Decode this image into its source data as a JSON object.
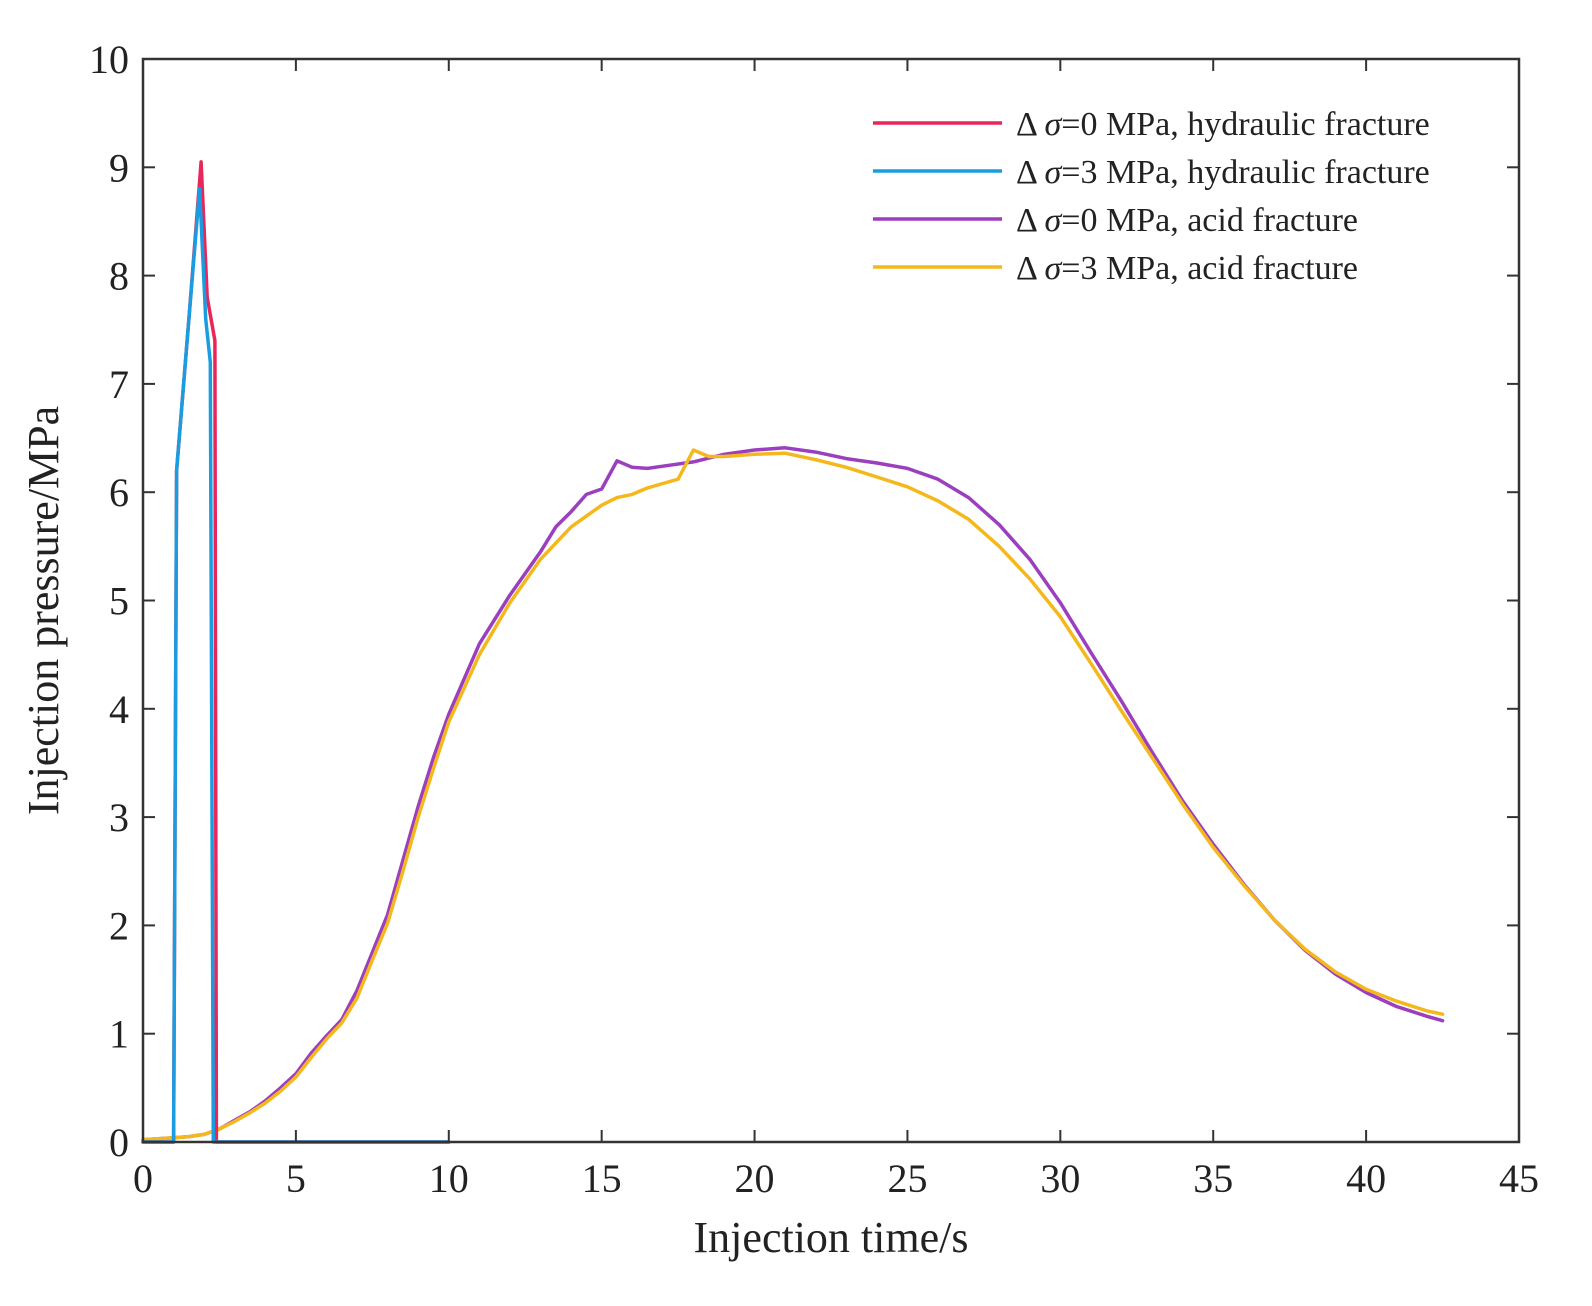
{
  "chart_data": {
    "type": "line",
    "title": "",
    "xlabel": "Injection time/s",
    "ylabel": "Injection pressure/MPa",
    "xlim": [
      0,
      45
    ],
    "ylim": [
      0,
      10
    ],
    "xticks": [
      0,
      5,
      10,
      15,
      20,
      25,
      30,
      35,
      40,
      45
    ],
    "yticks": [
      0,
      1,
      2,
      3,
      4,
      5,
      6,
      7,
      8,
      9,
      10
    ],
    "grid": false,
    "legend_position": "top-right",
    "series": [
      {
        "name": "Δσ=0 MPa, hydraulic fracture",
        "legend": {
          "prefix": "Δ ",
          "symbol": "σ",
          "suffix": "=0 MPa, hydraulic fracture"
        },
        "color": "#e8265a",
        "x": [
          0,
          1.0,
          1.1,
          1.5,
          1.9,
          2.1,
          2.35,
          2.4,
          2.5,
          10.0
        ],
        "y": [
          0,
          0,
          6.2,
          7.6,
          9.05,
          7.8,
          7.4,
          0.0,
          0.0,
          0.0
        ]
      },
      {
        "name": "Δσ=3 MPa, hydraulic fracture",
        "legend": {
          "prefix": "Δ ",
          "symbol": "σ",
          "suffix": "=3 MPa, hydraulic fracture"
        },
        "color": "#1a9de0",
        "x": [
          0,
          1.0,
          1.1,
          1.5,
          1.85,
          2.05,
          2.2,
          2.3,
          2.4,
          10.0
        ],
        "y": [
          0,
          0,
          6.2,
          7.6,
          8.8,
          7.6,
          7.2,
          0.0,
          0.0,
          0.0
        ]
      },
      {
        "name": "Δσ=0 MPa, acid fracture",
        "legend": {
          "prefix": "Δ ",
          "symbol": "σ",
          "suffix": "=0 MPa, acid fracture"
        },
        "color": "#9b3fbf",
        "x": [
          0,
          0.5,
          1,
          1.5,
          2,
          2.5,
          3,
          3.5,
          4,
          4.5,
          5,
          5.5,
          6,
          6.5,
          7,
          7.5,
          8,
          8.5,
          9,
          9.5,
          10,
          11,
          12,
          13,
          13.5,
          14,
          14.5,
          15,
          15.5,
          16,
          16.5,
          17,
          18,
          19,
          20,
          21,
          22,
          23,
          24,
          25,
          26,
          27,
          28,
          29,
          30,
          31,
          32,
          33,
          34,
          35,
          36,
          37,
          38,
          39,
          40,
          41,
          42,
          42.5
        ],
        "y": [
          0.02,
          0.03,
          0.04,
          0.05,
          0.07,
          0.12,
          0.2,
          0.28,
          0.38,
          0.5,
          0.63,
          0.82,
          0.98,
          1.13,
          1.4,
          1.75,
          2.1,
          2.6,
          3.1,
          3.55,
          3.95,
          4.6,
          5.05,
          5.45,
          5.68,
          5.82,
          5.98,
          6.03,
          6.29,
          6.23,
          6.22,
          6.24,
          6.28,
          6.35,
          6.39,
          6.41,
          6.37,
          6.31,
          6.27,
          6.22,
          6.12,
          5.95,
          5.7,
          5.38,
          4.98,
          4.52,
          4.07,
          3.6,
          3.15,
          2.75,
          2.38,
          2.05,
          1.77,
          1.55,
          1.38,
          1.25,
          1.16,
          1.12
        ]
      },
      {
        "name": "Δσ=3 MPa, acid fracture",
        "legend": {
          "prefix": "Δ ",
          "symbol": "σ",
          "suffix": "=3 MPa, acid fracture"
        },
        "color": "#f5b81c",
        "x": [
          0,
          0.5,
          1,
          1.5,
          2,
          2.5,
          3,
          3.5,
          4,
          4.5,
          5,
          5.5,
          6,
          6.5,
          7,
          7.5,
          8,
          8.5,
          9,
          9.5,
          10,
          11,
          12,
          13,
          14,
          15,
          15.5,
          16,
          16.5,
          17,
          17.5,
          18,
          18.5,
          19,
          20,
          21,
          22,
          23,
          24,
          25,
          26,
          27,
          28,
          29,
          30,
          31,
          32,
          33,
          34,
          35,
          36,
          37,
          38,
          39,
          40,
          41,
          42,
          42.5
        ],
        "y": [
          0.02,
          0.03,
          0.04,
          0.05,
          0.07,
          0.12,
          0.19,
          0.27,
          0.36,
          0.47,
          0.6,
          0.78,
          0.95,
          1.1,
          1.33,
          1.68,
          2.02,
          2.5,
          3.0,
          3.45,
          3.88,
          4.5,
          4.98,
          5.38,
          5.68,
          5.88,
          5.95,
          5.98,
          6.04,
          6.08,
          6.12,
          6.39,
          6.33,
          6.33,
          6.35,
          6.36,
          6.3,
          6.23,
          6.14,
          6.05,
          5.92,
          5.75,
          5.5,
          5.2,
          4.85,
          4.42,
          3.98,
          3.55,
          3.12,
          2.72,
          2.37,
          2.05,
          1.78,
          1.57,
          1.41,
          1.3,
          1.21,
          1.18
        ]
      }
    ]
  }
}
